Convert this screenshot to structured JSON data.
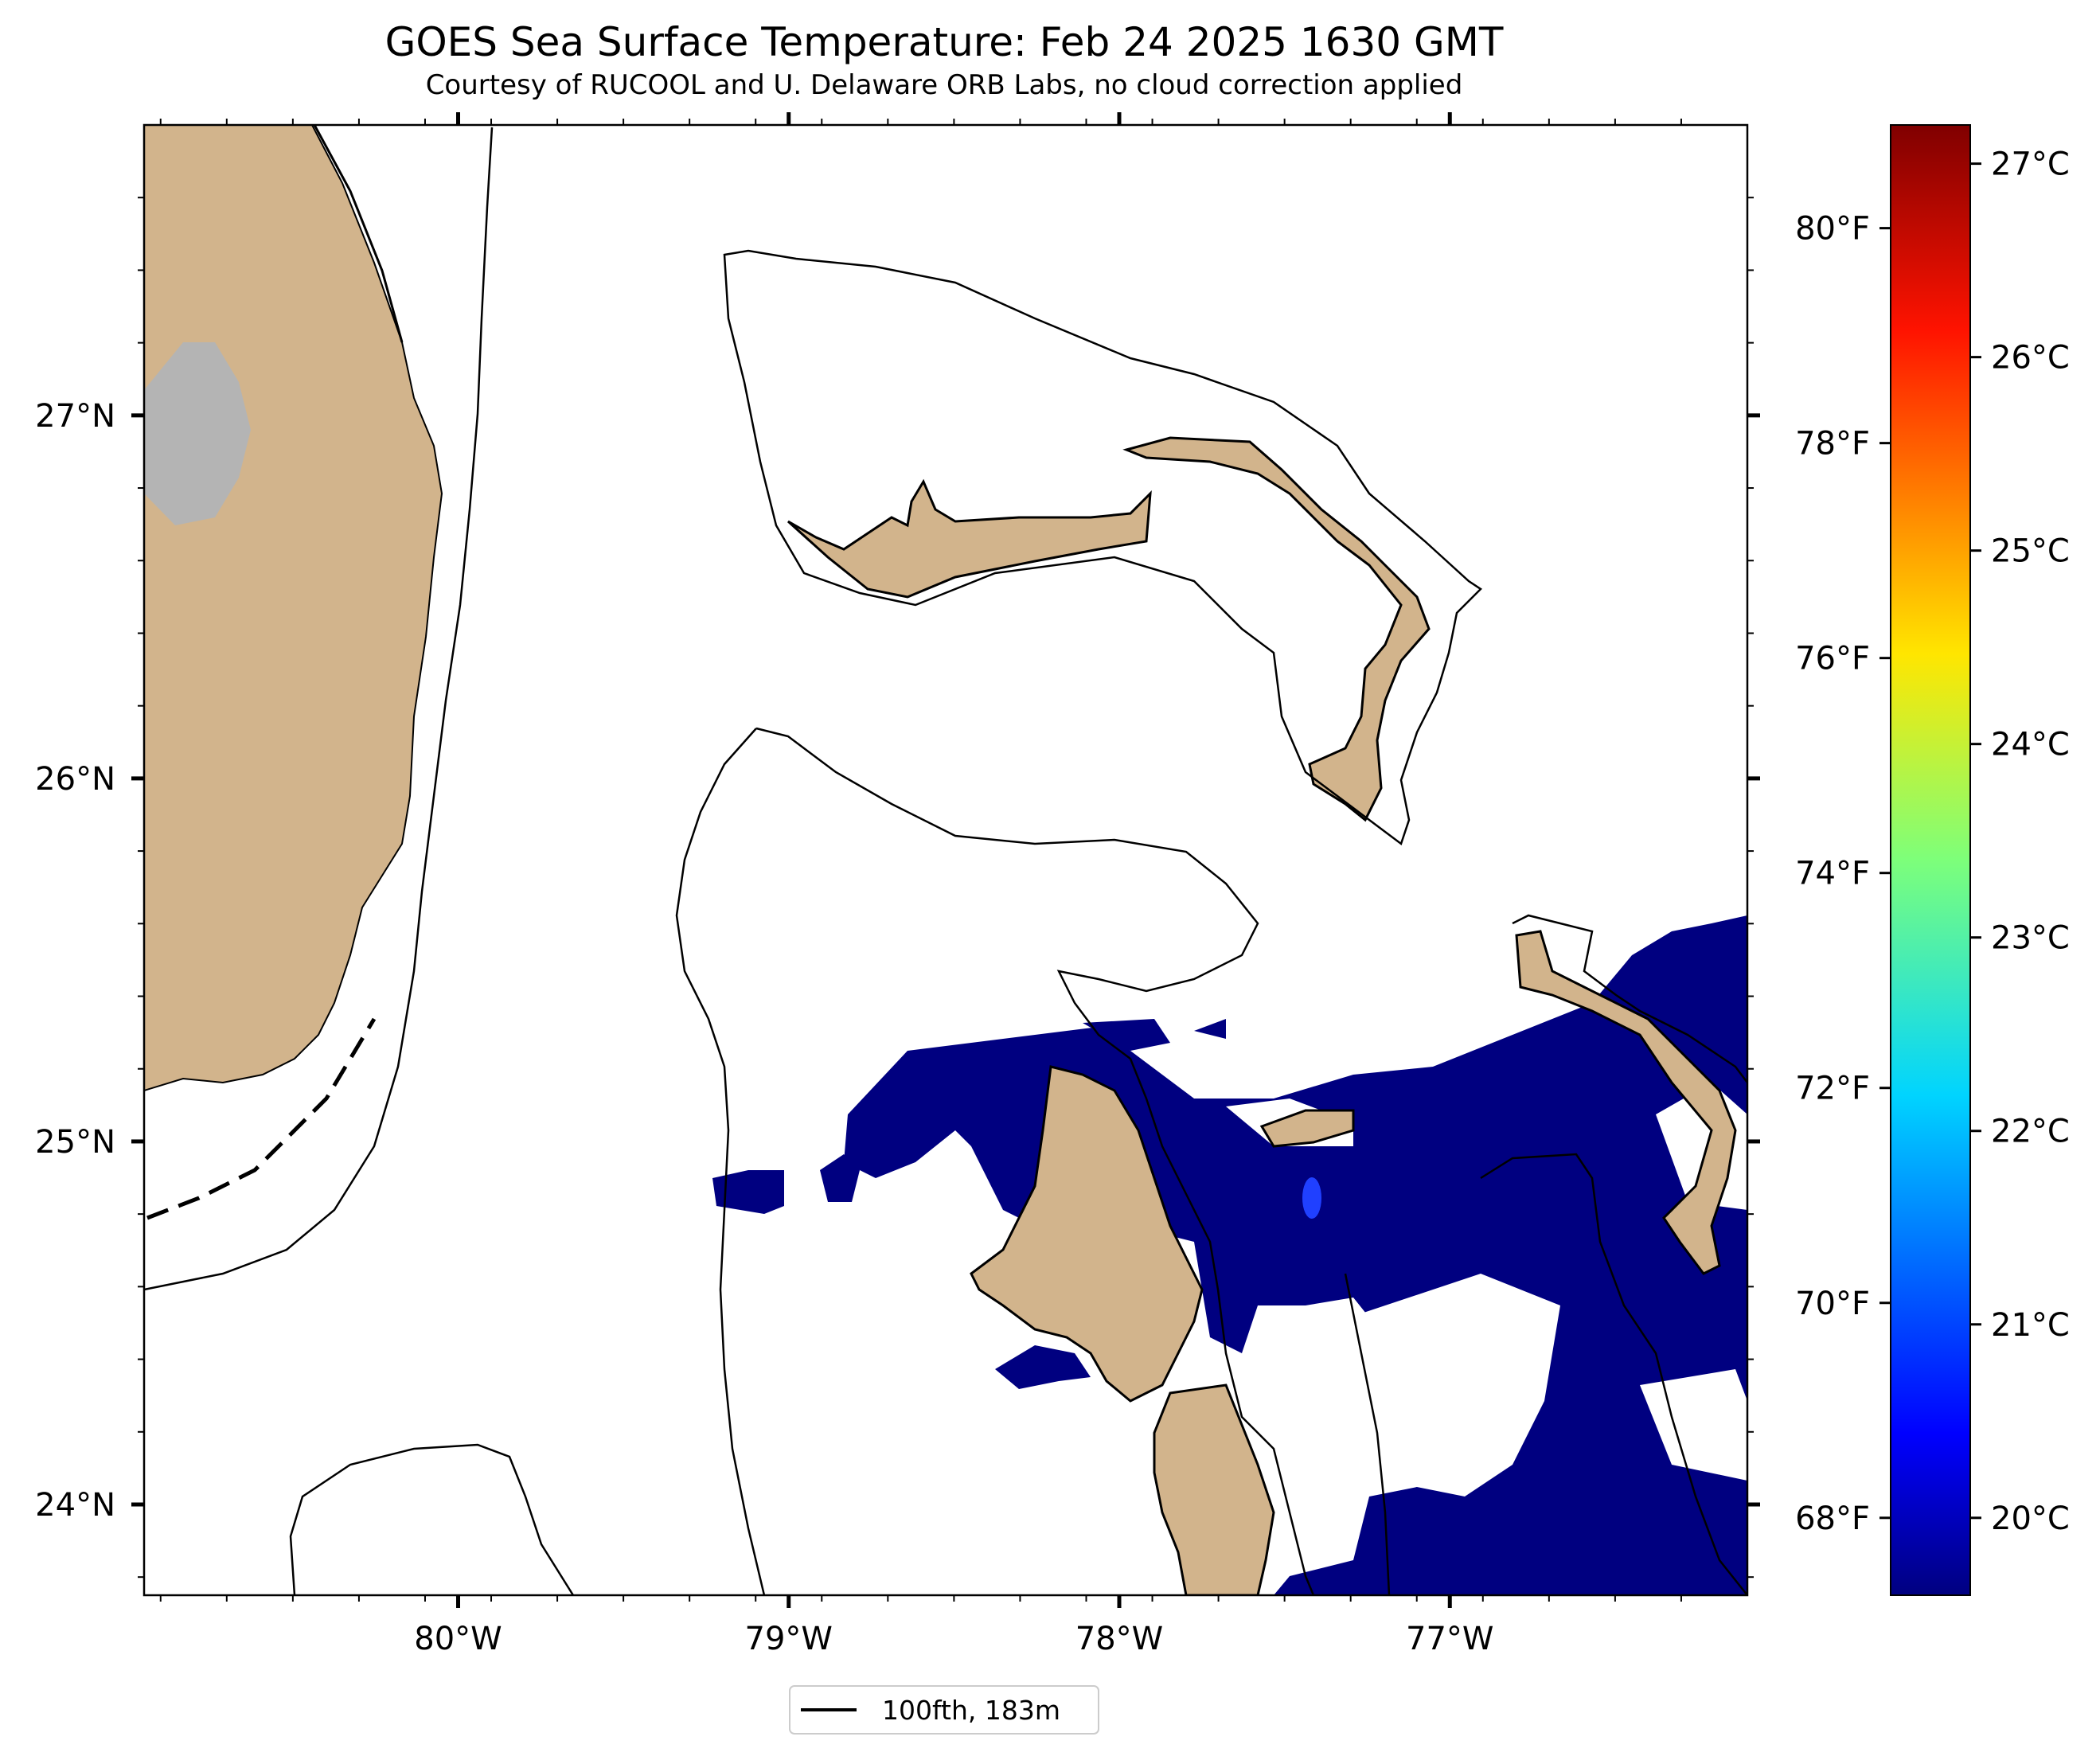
{
  "title": "GOES Sea Surface Temperature: Feb 24 2025 1630 GMT",
  "subtitle": "Courtesy of RUCOOL and U. Delaware ORB Labs, no cloud correction applied",
  "map": {
    "extent": {
      "lon": [
        -80.95,
        -76.1
      ],
      "lat": [
        23.75,
        27.8
      ]
    },
    "lat_ticks": [
      "27°N",
      "26°N",
      "25°N",
      "24°N"
    ],
    "lon_ticks": [
      "80°W",
      "79°W",
      "78°W",
      "77°W"
    ],
    "features": [
      "florida-peninsula",
      "lake-okeechobee",
      "grand-bahama",
      "great-abaco",
      "andros-island",
      "eleuthera",
      "new-providence",
      "isobath-100fth"
    ],
    "sst_value_c": 19.6
  },
  "colorbar": {
    "colormap": "jet",
    "celsius_ticks": [
      "27°C",
      "26°C",
      "25°C",
      "24°C",
      "23°C",
      "22°C",
      "21°C",
      "20°C"
    ],
    "fahrenheit_ticks": [
      "80°F",
      "78°F",
      "76°F",
      "74°F",
      "72°F",
      "70°F",
      "68°F"
    ],
    "range_c": [
      19.6,
      27.2
    ]
  },
  "legend": {
    "label": "100fth, 183m"
  },
  "colors": {
    "land": "#d2b48c",
    "sst_cold": "#000080",
    "lake": "#b4b4b4"
  }
}
